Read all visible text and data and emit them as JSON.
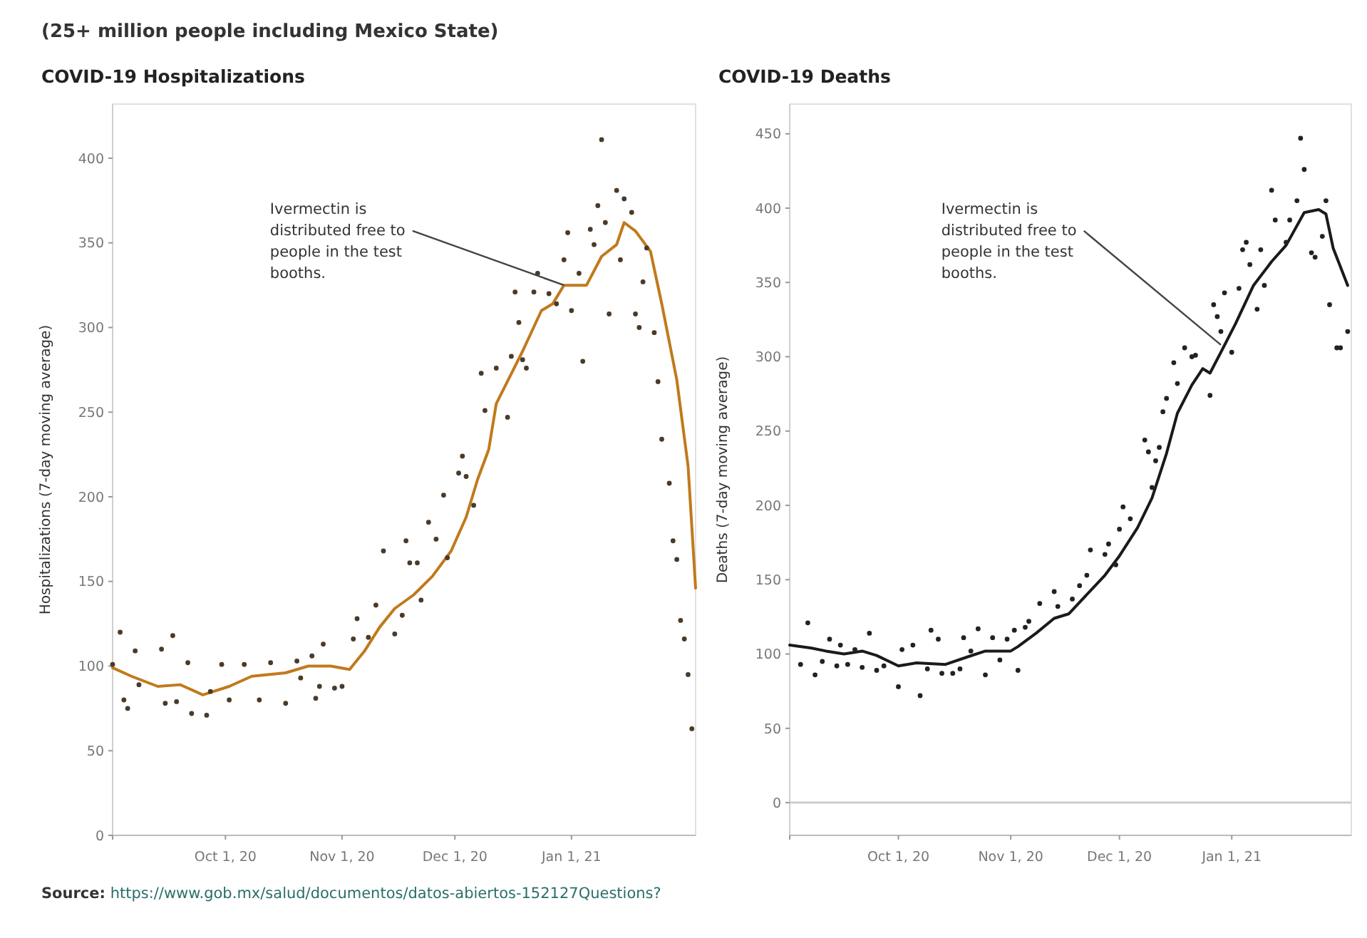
{
  "chart_data": [
    {
      "type": "line",
      "subtitle": "(25+ million people including Mexico State)",
      "title": "COVID-19 Hospitalizations",
      "ylabel": "Hospitalizations (7-day moving average)",
      "xlim": [
        "2020-09-01",
        "2021-02-03"
      ],
      "xticks": [
        {
          "value": "2020-09-01",
          "label": null
        },
        {
          "value": "2020-10-01",
          "label": "Oct 1, 20"
        },
        {
          "value": "2020-11-01",
          "label": "Nov 1, 20"
        },
        {
          "value": "2020-12-01",
          "label": "Dec 1, 20"
        },
        {
          "value": "2021-01-01",
          "label": "Jan 1, 21"
        }
      ],
      "ylim": [
        0,
        432
      ],
      "yticks": [
        0,
        50,
        100,
        150,
        200,
        250,
        300,
        350,
        400
      ],
      "series": [
        {
          "type": "line",
          "color": "#c07a1c",
          "x": [
            "2020-09-01",
            "2020-09-06",
            "2020-09-13",
            "2020-09-19",
            "2020-09-25",
            "2020-10-02",
            "2020-10-08",
            "2020-10-17",
            "2020-10-23",
            "2020-10-29",
            "2020-11-03",
            "2020-11-07",
            "2020-11-11",
            "2020-11-15",
            "2020-11-20",
            "2020-11-25",
            "2020-11-30",
            "2020-12-04",
            "2020-12-07",
            "2020-12-10",
            "2020-12-12",
            "2020-12-19",
            "2020-12-24",
            "2020-12-27",
            "2020-12-30",
            "2021-01-05",
            "2021-01-09",
            "2021-01-13",
            "2021-01-15",
            "2021-01-18",
            "2021-01-22",
            "2021-01-25",
            "2021-01-29",
            "2021-02-01",
            "2021-02-03"
          ],
          "values": [
            99,
            94,
            88,
            89,
            83,
            88,
            94,
            96,
            100,
            100,
            98,
            109,
            123,
            134,
            142,
            153,
            168,
            188,
            210,
            228,
            255,
            286,
            310,
            314,
            325,
            325,
            342,
            349,
            362,
            357,
            345,
            314,
            269,
            218,
            146
          ]
        },
        {
          "type": "scatter",
          "marker": "circle",
          "color": "#4a3a2a",
          "x": [
            "2020-09-01",
            "2020-09-03",
            "2020-09-04",
            "2020-09-05",
            "2020-09-07",
            "2020-09-08",
            "2020-09-14",
            "2020-09-15",
            "2020-09-17",
            "2020-09-18",
            "2020-09-21",
            "2020-09-22",
            "2020-09-26",
            "2020-09-27",
            "2020-09-30",
            "2020-10-02",
            "2020-10-06",
            "2020-10-10",
            "2020-10-13",
            "2020-10-17",
            "2020-10-20",
            "2020-10-21",
            "2020-10-24",
            "2020-10-25",
            "2020-10-26",
            "2020-10-27",
            "2020-10-30",
            "2020-11-01",
            "2020-11-04",
            "2020-11-05",
            "2020-11-08",
            "2020-11-10",
            "2020-11-12",
            "2020-11-15",
            "2020-11-17",
            "2020-11-18",
            "2020-11-19",
            "2020-11-21",
            "2020-11-22",
            "2020-11-24",
            "2020-11-26",
            "2020-11-28",
            "2020-11-29",
            "2020-12-02",
            "2020-12-03",
            "2020-12-04",
            "2020-12-06",
            "2020-12-08",
            "2020-12-09",
            "2020-12-12",
            "2020-12-15",
            "2020-12-16",
            "2020-12-17",
            "2020-12-18",
            "2020-12-19",
            "2020-12-20",
            "2020-12-22",
            "2020-12-23",
            "2020-12-26",
            "2020-12-28",
            "2020-12-30",
            "2020-12-31",
            "2021-01-01",
            "2021-01-03",
            "2021-01-04",
            "2021-01-06",
            "2021-01-07",
            "2021-01-08",
            "2021-01-09",
            "2021-01-10",
            "2021-01-11",
            "2021-01-13",
            "2021-01-14",
            "2021-01-15",
            "2021-01-17",
            "2021-01-18",
            "2021-01-19",
            "2021-01-20",
            "2021-01-21",
            "2021-01-23",
            "2021-01-24",
            "2021-01-25",
            "2021-01-27",
            "2021-01-28",
            "2021-01-29",
            "2021-01-30",
            "2021-01-31",
            "2021-02-01",
            "2021-02-02"
          ],
          "values": [
            101,
            120,
            80,
            75,
            109,
            89,
            110,
            78,
            118,
            79,
            102,
            72,
            71,
            85,
            101,
            80,
            101,
            80,
            102,
            78,
            103,
            93,
            106,
            81,
            88,
            113,
            87,
            88,
            116,
            128,
            117,
            136,
            168,
            119,
            130,
            174,
            161,
            161,
            139,
            185,
            175,
            201,
            164,
            214,
            224,
            212,
            195,
            273,
            251,
            276,
            247,
            283,
            321,
            303,
            281,
            276,
            321,
            332,
            320,
            314,
            340,
            356,
            310,
            332,
            280,
            358,
            349,
            372,
            411,
            362,
            308,
            381,
            340,
            376,
            368,
            308,
            300,
            327,
            347,
            297,
            268,
            234,
            208,
            174,
            163,
            127,
            116,
            95,
            63
          ]
        }
      ],
      "annotations": [
        {
          "text": "Ivermectin is distributed free to people in the test booths.",
          "x": "2020-12-30",
          "y": 325
        },
        "Source: https://www.gob.mx/salud/documentos/datos-abiertos-152127Questions?"
      ]
    },
    {
      "type": "line",
      "title": "COVID-19 Deaths",
      "ylabel": "Deaths (7-day moving average)",
      "xlim": [
        "2020-09-01",
        "2021-02-03"
      ],
      "xticks": [
        {
          "value": "2020-09-01",
          "label": null
        },
        {
          "value": "2020-10-01",
          "label": "Oct 1, 20"
        },
        {
          "value": "2020-11-01",
          "label": "Nov 1, 20"
        },
        {
          "value": "2020-12-01",
          "label": "Dec 1, 20"
        },
        {
          "value": "2021-01-01",
          "label": "Jan 1, 21"
        }
      ],
      "ylim": [
        -22,
        470
      ],
      "yticks": [
        0,
        50,
        100,
        150,
        200,
        250,
        300,
        350,
        400,
        450
      ],
      "ref_lines": [
        {
          "axis": "y",
          "value": 0,
          "color": "#cccccc"
        }
      ],
      "series": [
        {
          "type": "line",
          "color": "#1a1a1a",
          "x": [
            "2020-09-01",
            "2020-09-07",
            "2020-09-11",
            "2020-09-16",
            "2020-09-21",
            "2020-09-25",
            "2020-10-01",
            "2020-10-06",
            "2020-10-14",
            "2020-10-20",
            "2020-10-25",
            "2020-11-01",
            "2020-11-03",
            "2020-11-08",
            "2020-11-13",
            "2020-11-17",
            "2020-11-22",
            "2020-11-27",
            "2020-12-01",
            "2020-12-06",
            "2020-12-10",
            "2020-12-14",
            "2020-12-17",
            "2020-12-21",
            "2020-12-24",
            "2020-12-26",
            "2020-12-29",
            "2021-01-02",
            "2021-01-07",
            "2021-01-12",
            "2021-01-16",
            "2021-01-21",
            "2021-01-25",
            "2021-01-27",
            "2021-01-29",
            "2021-02-02"
          ],
          "values": [
            106,
            104,
            102,
            100,
            102,
            99,
            92,
            94,
            93,
            98,
            102,
            102,
            105,
            114,
            124,
            127,
            140,
            153,
            166,
            185,
            205,
            235,
            262,
            281,
            292,
            289,
            303,
            322,
            348,
            364,
            375,
            397,
            399,
            396,
            373,
            348
          ]
        },
        {
          "type": "scatter",
          "marker": "circle",
          "color": "#222222",
          "x": [
            "2020-09-04",
            "2020-09-06",
            "2020-09-08",
            "2020-09-10",
            "2020-09-12",
            "2020-09-14",
            "2020-09-15",
            "2020-09-17",
            "2020-09-19",
            "2020-09-21",
            "2020-09-23",
            "2020-09-25",
            "2020-09-27",
            "2020-10-01",
            "2020-10-02",
            "2020-10-05",
            "2020-10-07",
            "2020-10-09",
            "2020-10-10",
            "2020-10-12",
            "2020-10-13",
            "2020-10-16",
            "2020-10-18",
            "2020-10-19",
            "2020-10-21",
            "2020-10-23",
            "2020-10-25",
            "2020-10-27",
            "2020-10-29",
            "2020-10-31",
            "2020-11-02",
            "2020-11-03",
            "2020-11-05",
            "2020-11-06",
            "2020-11-09",
            "2020-11-13",
            "2020-11-14",
            "2020-11-18",
            "2020-11-20",
            "2020-11-22",
            "2020-11-23",
            "2020-11-27",
            "2020-11-28",
            "2020-11-30",
            "2020-12-01",
            "2020-12-02",
            "2020-12-04",
            "2020-12-08",
            "2020-12-09",
            "2020-12-10",
            "2020-12-11",
            "2020-12-12",
            "2020-12-13",
            "2020-12-14",
            "2020-12-16",
            "2020-12-17",
            "2020-12-19",
            "2020-12-21",
            "2020-12-22",
            "2020-12-26",
            "2020-12-27",
            "2020-12-28",
            "2020-12-29",
            "2020-12-30",
            "2021-01-01",
            "2021-01-03",
            "2021-01-04",
            "2021-01-05",
            "2021-01-06",
            "2021-01-08",
            "2021-01-09",
            "2021-01-10",
            "2021-01-12",
            "2021-01-13",
            "2021-01-16",
            "2021-01-17",
            "2021-01-19",
            "2021-01-20",
            "2021-01-21",
            "2021-01-23",
            "2021-01-24",
            "2021-01-26",
            "2021-01-27",
            "2021-01-28",
            "2021-01-30",
            "2021-01-31",
            "2021-02-02"
          ],
          "values": [
            93,
            121,
            86,
            95,
            110,
            92,
            106,
            93,
            103,
            91,
            114,
            89,
            92,
            78,
            103,
            106,
            72,
            90,
            116,
            110,
            87,
            87,
            90,
            111,
            102,
            117,
            86,
            111,
            96,
            110,
            116,
            89,
            118,
            122,
            134,
            142,
            132,
            137,
            146,
            153,
            170,
            167,
            174,
            160,
            184,
            199,
            191,
            244,
            236,
            212,
            230,
            239,
            263,
            272,
            296,
            282,
            306,
            300,
            301,
            274,
            335,
            327,
            317,
            343,
            303,
            346,
            372,
            377,
            362,
            332,
            372,
            348,
            412,
            392,
            377,
            392,
            405,
            447,
            426,
            370,
            367,
            381,
            405,
            335,
            306,
            306,
            317
          ]
        }
      ],
      "annotations": [
        {
          "text": "Ivermectin is distributed free to people in the test booths.",
          "x": "2020-12-29",
          "y": 308
        }
      ]
    }
  ]
}
